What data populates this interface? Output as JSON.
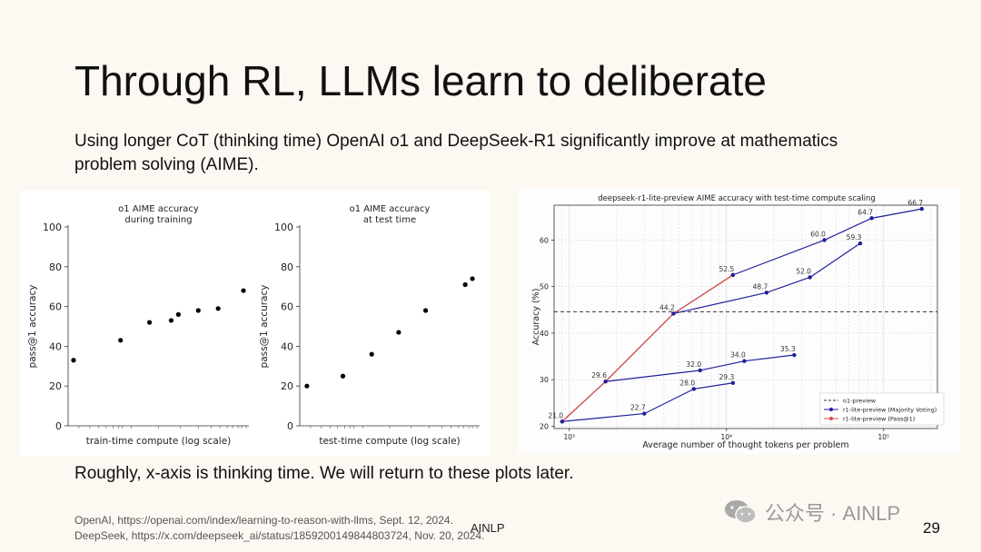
{
  "slide": {
    "title": "Through RL, LLMs learn to deliberate",
    "subtitle": "Using longer CoT (thinking time) OpenAI o1 and DeepSeek-R1 significantly improve at mathematics problem solving (AIME).",
    "caption": "Roughly, x-axis is thinking time. We will return to these plots later.",
    "references": [
      "OpenAI, https://openai.com/index/learning-to-reason-with-llms, Sept. 12, 2024.",
      "DeepSeek, https://x.com/deepseek_ai/status/1859200149844803724, Nov. 20, 2024."
    ],
    "footer_center": "AINLP",
    "page_number": "29",
    "watermark": {
      "text": "公众号 · AINLP",
      "icon": "wechat-icon"
    }
  },
  "chart_data": [
    {
      "type": "scatter",
      "title": "o1 AIME accuracy\nduring training",
      "title_lines": [
        "o1 AIME accuracy",
        "during training"
      ],
      "xlabel": "train-time compute (log scale)",
      "ylabel": "pass@1 accuracy",
      "ylim": [
        0,
        100
      ],
      "yticks": [
        0,
        20,
        40,
        60,
        80,
        100
      ],
      "x_ticks_labeled": false,
      "points": [
        {
          "x": 0.03,
          "y": 33
        },
        {
          "x": 0.29,
          "y": 43
        },
        {
          "x": 0.45,
          "y": 52
        },
        {
          "x": 0.57,
          "y": 53
        },
        {
          "x": 0.61,
          "y": 56
        },
        {
          "x": 0.72,
          "y": 58
        },
        {
          "x": 0.83,
          "y": 59
        },
        {
          "x": 0.97,
          "y": 68
        }
      ],
      "color": "#000000"
    },
    {
      "type": "scatter",
      "title": "o1 AIME accuracy\nat test time",
      "title_lines": [
        "o1 AIME accuracy",
        "at test time"
      ],
      "xlabel": "test-time compute (log scale)",
      "ylabel": "pass@1 accuracy",
      "ylim": [
        0,
        100
      ],
      "yticks": [
        0,
        20,
        40,
        60,
        80,
        100
      ],
      "x_ticks_labeled": false,
      "points": [
        {
          "x": 0.04,
          "y": 20
        },
        {
          "x": 0.24,
          "y": 25
        },
        {
          "x": 0.4,
          "y": 36
        },
        {
          "x": 0.55,
          "y": 47
        },
        {
          "x": 0.7,
          "y": 58
        },
        {
          "x": 0.92,
          "y": 71
        },
        {
          "x": 0.96,
          "y": 74
        }
      ],
      "color": "#000000"
    },
    {
      "type": "line",
      "title": "deepseek-r1-lite-preview AIME accuracy with test-time compute scaling",
      "xlabel": "Average number of thought tokens per problem",
      "ylabel": "Accuracy (%)",
      "xscale": "log",
      "xlim": [
        800,
        220000
      ],
      "ylim": [
        19.5,
        67.5
      ],
      "yticks": [
        20,
        30,
        40,
        50,
        60
      ],
      "xtick_values": [
        1000,
        10000,
        100000
      ],
      "xtick_labels": [
        "10³",
        "10⁴",
        "10⁵"
      ],
      "grid": true,
      "legend": "bottom-right",
      "reference_line": {
        "name": "o1-preview",
        "y": 44.6,
        "style": "dashed",
        "color": "#333333"
      },
      "series": [
        {
          "name": "r1-lite-preview (Majority Voting)",
          "color": "#1f1f9c",
          "segments": [
            [
              {
                "x": 900,
                "y": 21.0
              },
              {
                "x": 3000,
                "y": 22.7
              },
              {
                "x": 6200,
                "y": 28.0
              },
              {
                "x": 11000,
                "y": 29.3
              }
            ],
            [
              {
                "x": 1700,
                "y": 29.6
              },
              {
                "x": 6800,
                "y": 32.0
              },
              {
                "x": 13000,
                "y": 34.0
              },
              {
                "x": 27000,
                "y": 35.3
              }
            ],
            [
              {
                "x": 4600,
                "y": 44.2
              },
              {
                "x": 18000,
                "y": 48.7
              },
              {
                "x": 34000,
                "y": 52.0
              },
              {
                "x": 71000,
                "y": 59.3
              }
            ],
            [
              {
                "x": 11000,
                "y": 52.5
              },
              {
                "x": 42000,
                "y": 60.0
              },
              {
                "x": 84000,
                "y": 64.7
              },
              {
                "x": 175000,
                "y": 66.7
              }
            ]
          ],
          "labels": [
            "21.0",
            "22.7",
            "28.0",
            "29.3",
            "29.6",
            "32.0",
            "34.0",
            "35.3",
            "44.2",
            "48.7",
            "52.0",
            "59.3",
            "52.5",
            "60.0",
            "64.7",
            "66.7"
          ]
        },
        {
          "name": "r1-lite-preview (Pass@1)",
          "color": "#d05050",
          "points": [
            {
              "x": 900,
              "y": 21.0
            },
            {
              "x": 1700,
              "y": 29.6
            },
            {
              "x": 4600,
              "y": 44.2
            },
            {
              "x": 11000,
              "y": 52.5
            }
          ]
        }
      ]
    }
  ]
}
